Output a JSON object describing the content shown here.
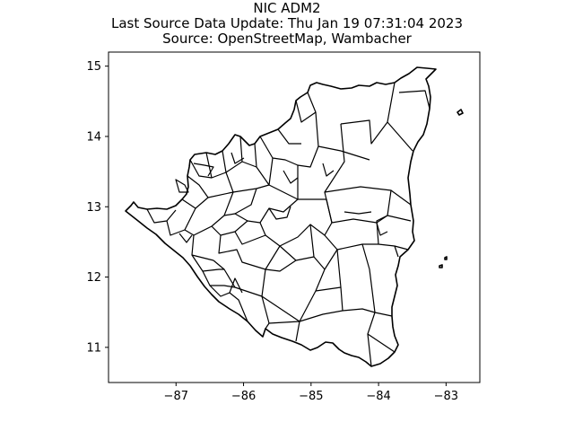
{
  "figure": {
    "title": "NIC ADM2",
    "subtitle_update": "Last Source Data Update: Thu Jan 19 07:31:04 2023",
    "subtitle_source": "Source: OpenStreetMap, Wambacher"
  },
  "chart_data": {
    "type": "map",
    "title": "NIC ADM2",
    "subtitle": [
      "Last Source Data Update: Thu Jan 19 07:31:04 2023",
      "Source: OpenStreetMap, Wambacher"
    ],
    "xlabel": "",
    "ylabel": "",
    "xlim": [
      -88.0,
      -82.5
    ],
    "ylim": [
      10.5,
      15.2
    ],
    "x_ticks": [
      -87,
      -86,
      -85,
      -84,
      -83
    ],
    "x_tick_labels": [
      "−87",
      "−86",
      "−85",
      "−84",
      "−83"
    ],
    "y_ticks": [
      11,
      12,
      13,
      14,
      15
    ],
    "y_tick_labels": [
      "11",
      "12",
      "13",
      "14",
      "15"
    ],
    "grid": false,
    "style": {
      "fill": "none",
      "edge_color": "#000000"
    }
  }
}
